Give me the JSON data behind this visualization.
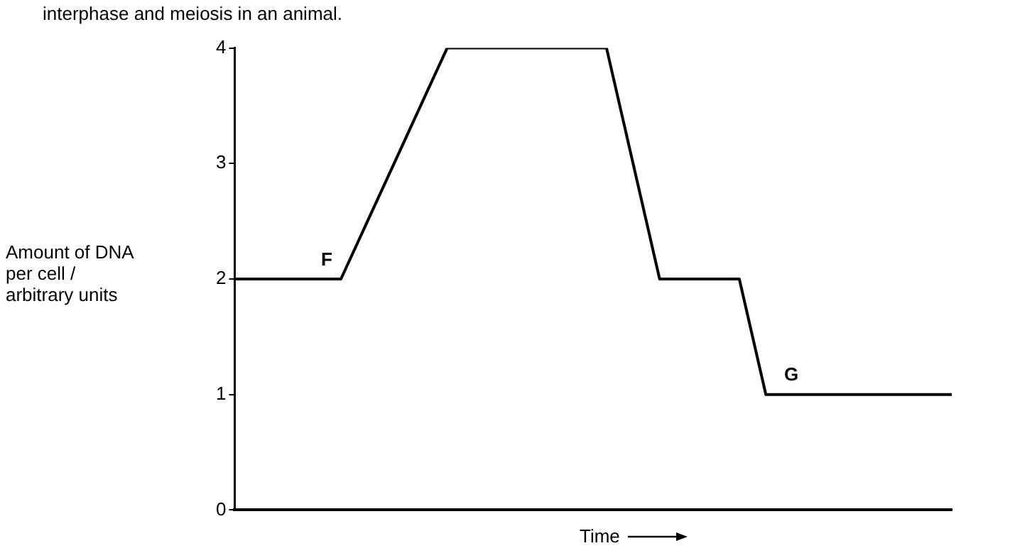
{
  "chart_data": {
    "type": "line",
    "xlabel": "Time",
    "ylabel": "Amount of DNA per cell / arbitrary units",
    "categories": [
      null,
      null,
      null,
      null,
      null,
      null,
      null,
      null,
      null,
      null,
      null,
      null,
      null,
      null,
      null,
      null,
      null,
      null,
      null,
      null,
      null,
      null,
      null,
      null,
      null,
      null,
      null,
      null
    ],
    "series": [
      {
        "color": "#000000",
        "values": [
          2,
          2,
          2,
          2,
          2,
          2.5,
          3,
          3.5,
          4,
          4,
          4,
          4,
          4,
          4,
          4,
          3,
          2,
          2,
          2,
          2,
          1,
          1,
          1,
          1,
          1,
          1,
          1,
          1
        ]
      }
    ],
    "ylim": [
      0,
      4
    ],
    "yticks": [
      0,
      1,
      2,
      3,
      4
    ],
    "tick_labels": "y",
    "grid": false,
    "legend": false,
    "marker": "none",
    "line_style": "solid",
    "annotations": [
      "interphase and meiosis in an animal.",
      "F",
      "G"
    ]
  }
}
